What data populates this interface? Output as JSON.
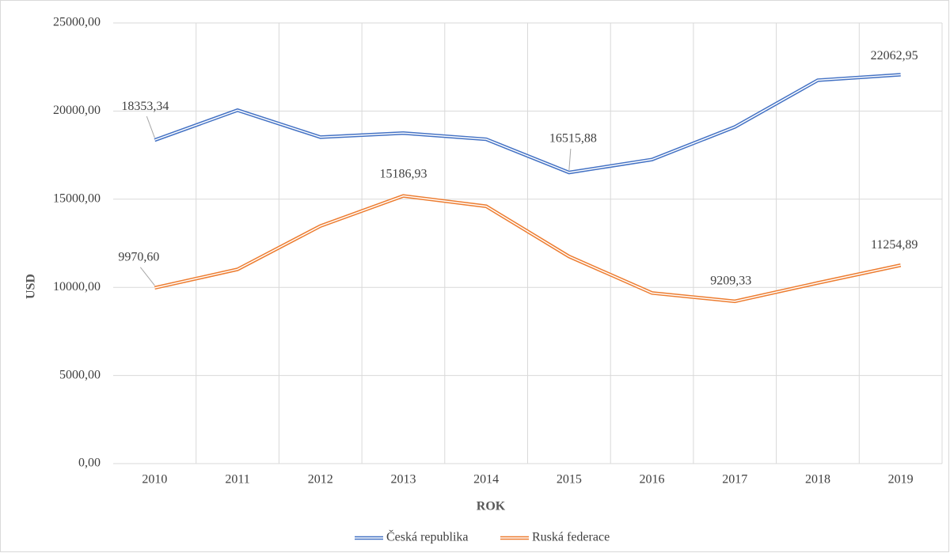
{
  "chart_data": {
    "type": "line",
    "categories": [
      "2010",
      "2011",
      "2012",
      "2013",
      "2014",
      "2015",
      "2016",
      "2017",
      "2018",
      "2019"
    ],
    "series": [
      {
        "name": "Česká republika",
        "color": "#4472c4",
        "values": [
          18353.34,
          20050,
          18520,
          18750,
          18400,
          16515.88,
          17250,
          19100,
          21750,
          22062.95
        ],
        "value_labels": [
          "18353,34",
          null,
          null,
          null,
          null,
          "16515,88",
          null,
          null,
          null,
          "22062,95"
        ]
      },
      {
        "name": "Ruská federace",
        "color": "#ed7d31",
        "values": [
          9970.6,
          11020,
          13480,
          15186.93,
          14600,
          11750,
          9680,
          9209.33,
          10250,
          11254.89
        ],
        "value_labels": [
          "9970,60",
          null,
          null,
          "15186,93",
          null,
          null,
          null,
          "9209,33",
          null,
          "11254,89"
        ]
      }
    ],
    "ylim": [
      0,
      25000
    ],
    "yticks": [
      {
        "value": 0,
        "label": "0,00"
      },
      {
        "value": 5000,
        "label": "5000,00"
      },
      {
        "value": 10000,
        "label": "10000,00"
      },
      {
        "value": 15000,
        "label": "15000,00"
      },
      {
        "value": 20000,
        "label": "20000,00"
      },
      {
        "value": 25000,
        "label": "25000,00"
      }
    ],
    "ylabel": "USD",
    "xlabel": "ROK",
    "grid": true,
    "legend": "bottom"
  }
}
